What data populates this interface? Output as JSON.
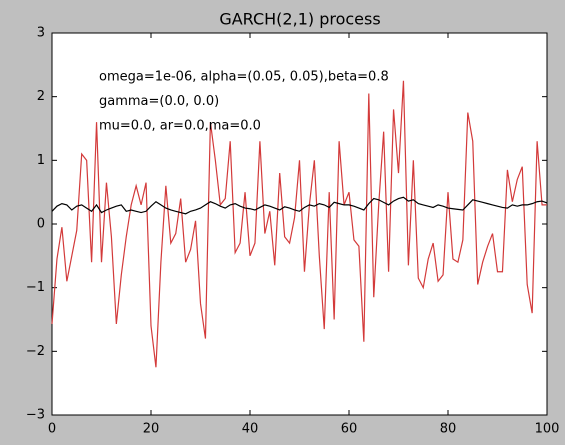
{
  "chart_data": {
    "type": "line",
    "title": "GARCH(2,1) process",
    "annotations": [
      "omega=1e-06, alpha=(0.05, 0.05),beta=0.8",
      "gamma=(0.0, 0.0)",
      "mu=0.0, ar=0.0,ma=0.0"
    ],
    "x": [
      0,
      1,
      2,
      3,
      4,
      5,
      6,
      7,
      8,
      9,
      10,
      11,
      12,
      13,
      14,
      15,
      16,
      17,
      18,
      19,
      20,
      21,
      22,
      23,
      24,
      25,
      26,
      27,
      28,
      29,
      30,
      31,
      32,
      33,
      34,
      35,
      36,
      37,
      38,
      39,
      40,
      41,
      42,
      43,
      44,
      45,
      46,
      47,
      48,
      49,
      50,
      51,
      52,
      53,
      54,
      55,
      56,
      57,
      58,
      59,
      60,
      61,
      62,
      63,
      64,
      65,
      66,
      67,
      68,
      69,
      70,
      71,
      72,
      73,
      74,
      75,
      76,
      77,
      78,
      79,
      80,
      81,
      82,
      83,
      84,
      85,
      86,
      87,
      88,
      89,
      90,
      91,
      92,
      93,
      94,
      95,
      96,
      97,
      98,
      99,
      100
    ],
    "series": [
      {
        "color": "#d33a3a",
        "values": [
          -1.57,
          -0.55,
          -0.05,
          -0.9,
          -0.5,
          -0.1,
          1.1,
          1.0,
          -0.6,
          1.6,
          -0.6,
          0.65,
          -0.2,
          -1.57,
          -0.8,
          -0.2,
          0.3,
          0.6,
          0.3,
          0.65,
          -1.6,
          -2.25,
          -0.6,
          0.6,
          -0.3,
          -0.15,
          0.4,
          -0.6,
          -0.4,
          0.05,
          -1.25,
          -1.8,
          1.6,
          1.0,
          0.3,
          0.4,
          1.3,
          -0.45,
          -0.3,
          0.5,
          -0.5,
          -0.3,
          1.3,
          -0.15,
          0.2,
          -0.65,
          0.8,
          -0.2,
          -0.3,
          0.1,
          1.0,
          -0.75,
          0.3,
          1.0,
          -0.5,
          -1.65,
          0.5,
          -1.5,
          1.3,
          0.3,
          0.5,
          -0.25,
          -0.35,
          -1.85,
          2.05,
          -1.15,
          0.3,
          1.45,
          -0.75,
          1.8,
          0.8,
          2.25,
          -0.65,
          1.0,
          -0.85,
          -1.0,
          -0.55,
          -0.3,
          -0.9,
          -0.8,
          0.5,
          -0.55,
          -0.6,
          -0.25,
          1.75,
          1.3,
          -0.95,
          -0.6,
          -0.35,
          -0.15,
          -0.75,
          -0.75,
          0.85,
          0.35,
          0.7,
          0.9,
          -0.95,
          -1.4,
          1.3,
          0.3,
          0.3
        ]
      },
      {
        "color": "#000000",
        "values": [
          0.2,
          0.28,
          0.32,
          0.3,
          0.22,
          0.28,
          0.3,
          0.25,
          0.2,
          0.3,
          0.18,
          0.22,
          0.25,
          0.28,
          0.3,
          0.2,
          0.22,
          0.2,
          0.18,
          0.2,
          0.28,
          0.35,
          0.3,
          0.25,
          0.22,
          0.2,
          0.18,
          0.16,
          0.2,
          0.22,
          0.25,
          0.3,
          0.35,
          0.32,
          0.28,
          0.25,
          0.3,
          0.32,
          0.28,
          0.25,
          0.24,
          0.22,
          0.26,
          0.3,
          0.28,
          0.25,
          0.22,
          0.27,
          0.25,
          0.22,
          0.2,
          0.26,
          0.3,
          0.28,
          0.32,
          0.3,
          0.26,
          0.34,
          0.32,
          0.3,
          0.3,
          0.28,
          0.25,
          0.22,
          0.32,
          0.4,
          0.38,
          0.34,
          0.3,
          0.36,
          0.4,
          0.42,
          0.36,
          0.38,
          0.32,
          0.3,
          0.28,
          0.26,
          0.3,
          0.28,
          0.25,
          0.24,
          0.23,
          0.22,
          0.3,
          0.38,
          0.36,
          0.34,
          0.32,
          0.3,
          0.28,
          0.26,
          0.25,
          0.3,
          0.28,
          0.3,
          0.3,
          0.32,
          0.35,
          0.36,
          0.33
        ]
      }
    ],
    "xlim": [
      0,
      100
    ],
    "xticks": [
      0,
      20,
      40,
      60,
      80,
      100
    ],
    "ylim": [
      -3,
      3
    ],
    "yticks": [
      {
        "value": -3,
        "label": "−3"
      },
      {
        "value": -2,
        "label": "−2"
      },
      {
        "value": -1,
        "label": "−1"
      },
      0,
      1,
      2,
      3
    ],
    "grid": false
  }
}
